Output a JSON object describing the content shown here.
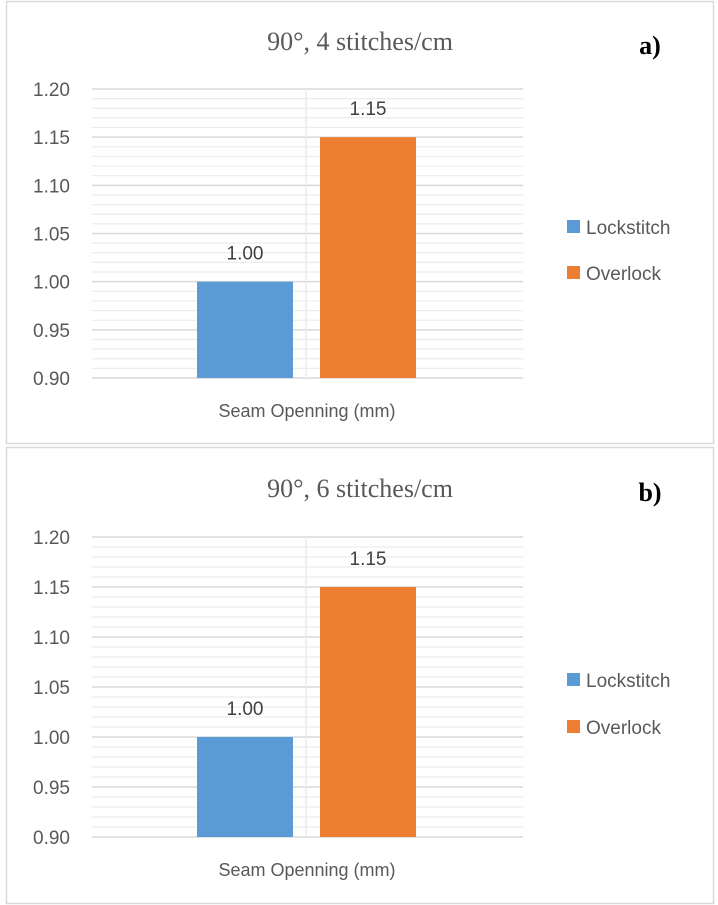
{
  "chart_data": [
    {
      "type": "bar",
      "panel_label": "a)",
      "title": "90°, 4 stitches/cm",
      "categories": [
        "Seam Openning (mm)"
      ],
      "series": [
        {
          "name": "Lockstitch",
          "values": [
            1.0
          ],
          "labels": [
            "1.00"
          ],
          "color": "#5B9BD5"
        },
        {
          "name": "Overlock",
          "values": [
            1.15
          ],
          "labels": [
            "1.15"
          ],
          "color": "#ED7D31"
        }
      ],
      "xlabel": "Seam Openning (mm)",
      "ylabel": "",
      "ylim": [
        0.9,
        1.2
      ],
      "yticks": [
        "0.90",
        "0.95",
        "1.00",
        "1.05",
        "1.10",
        "1.15",
        "1.20"
      ],
      "grid": true,
      "legend": "right"
    },
    {
      "type": "bar",
      "panel_label": "b)",
      "title": "90°, 6 stitches/cm",
      "categories": [
        "Seam Openning (mm)"
      ],
      "series": [
        {
          "name": "Lockstitch",
          "values": [
            1.0
          ],
          "labels": [
            "1.00"
          ],
          "color": "#5B9BD5"
        },
        {
          "name": "Overlock",
          "values": [
            1.15
          ],
          "labels": [
            "1.15"
          ],
          "color": "#ED7D31"
        }
      ],
      "xlabel": "Seam Openning (mm)",
      "ylabel": "",
      "ylim": [
        0.9,
        1.2
      ],
      "yticks": [
        "0.90",
        "0.95",
        "1.00",
        "1.05",
        "1.10",
        "1.15",
        "1.20"
      ],
      "grid": true,
      "legend": "right"
    }
  ]
}
